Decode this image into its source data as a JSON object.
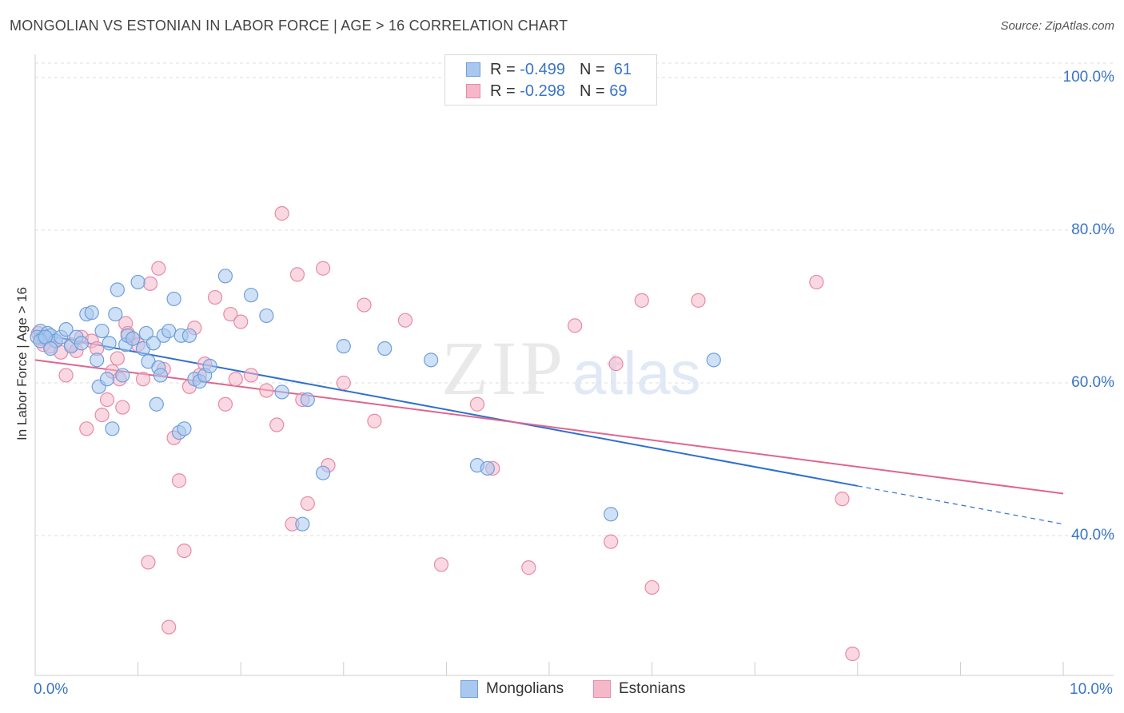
{
  "title": "MONGOLIAN VS ESTONIAN IN LABOR FORCE | AGE > 16 CORRELATION CHART",
  "source": "Source: ZipAtlas.com",
  "watermark": {
    "zip": "ZIP",
    "atlas": "atlas"
  },
  "legend": {
    "rows": [
      {
        "r_label": "R =",
        "r_value": "-0.499",
        "n_label": "N =",
        "n_value": "61"
      },
      {
        "r_label": "R =",
        "r_value": "-0.298",
        "n_label": "N =",
        "n_value": "69"
      }
    ]
  },
  "bottom_legend": {
    "series1": "Mongolians",
    "series2": "Estonians"
  },
  "colors": {
    "mongolians_fill": "#a8c8f0",
    "mongolians_stroke": "#6f9fd8",
    "mongolians_line": "#2e6fd1",
    "estonians_fill": "#f5b8cb",
    "estonians_stroke": "#e68aa8",
    "estonians_line": "#e0658f",
    "tick_text": "#3a75c4",
    "grid": "#dddddd"
  },
  "chart_data": {
    "type": "scatter",
    "title": "MONGOLIAN VS ESTONIAN IN LABOR FORCE | AGE > 16 CORRELATION CHART",
    "xlabel": "",
    "ylabel": "In Labor Force | Age > 16",
    "xlim": [
      0,
      10
    ],
    "ylim": [
      20,
      101
    ],
    "x_tick_labels": [
      "0.0%",
      "10.0%"
    ],
    "y_ticks": [
      40,
      60,
      80,
      100
    ],
    "y_tick_labels": [
      "40.0%",
      "60.0%",
      "80.0%",
      "100.0%"
    ],
    "grid": true,
    "series": [
      {
        "name": "Mongolians",
        "r": -0.499,
        "n": 61,
        "trend": {
          "x0": 0,
          "y0": 66.5,
          "x1": 8,
          "y1": 46.5,
          "dashed_to_x": 10,
          "dashed_to_y": 41.5
        },
        "points": [
          [
            0.05,
            66.8
          ],
          [
            0.08,
            66.0
          ],
          [
            0.12,
            66.5
          ],
          [
            0.15,
            66.2
          ],
          [
            0.2,
            65.5
          ],
          [
            0.25,
            66.0
          ],
          [
            0.3,
            67.0
          ],
          [
            0.35,
            64.8
          ],
          [
            0.4,
            66.0
          ],
          [
            0.45,
            65.2
          ],
          [
            0.5,
            69.0
          ],
          [
            0.55,
            69.2
          ],
          [
            0.6,
            63.0
          ],
          [
            0.62,
            59.5
          ],
          [
            0.65,
            66.8
          ],
          [
            0.7,
            60.5
          ],
          [
            0.72,
            65.2
          ],
          [
            0.75,
            54.0
          ],
          [
            0.78,
            69.0
          ],
          [
            0.8,
            72.2
          ],
          [
            0.85,
            61.0
          ],
          [
            0.88,
            65.0
          ],
          [
            0.9,
            66.2
          ],
          [
            0.95,
            65.8
          ],
          [
            1.0,
            73.2
          ],
          [
            1.05,
            64.5
          ],
          [
            1.08,
            66.5
          ],
          [
            1.1,
            62.8
          ],
          [
            1.15,
            65.2
          ],
          [
            1.18,
            57.2
          ],
          [
            1.2,
            62.0
          ],
          [
            1.22,
            61.0
          ],
          [
            1.25,
            66.2
          ],
          [
            1.3,
            66.8
          ],
          [
            1.35,
            71.0
          ],
          [
            1.4,
            53.5
          ],
          [
            1.42,
            66.2
          ],
          [
            1.45,
            54.0
          ],
          [
            1.5,
            66.2
          ],
          [
            1.55,
            60.5
          ],
          [
            1.6,
            60.2
          ],
          [
            1.65,
            61.0
          ],
          [
            1.7,
            62.2
          ],
          [
            1.85,
            74.0
          ],
          [
            2.1,
            71.5
          ],
          [
            2.25,
            68.8
          ],
          [
            2.4,
            58.8
          ],
          [
            2.65,
            57.8
          ],
          [
            2.6,
            41.5
          ],
          [
            2.8,
            48.2
          ],
          [
            3.0,
            64.8
          ],
          [
            3.4,
            64.5
          ],
          [
            3.85,
            63.0
          ],
          [
            4.3,
            49.2
          ],
          [
            4.4,
            48.8
          ],
          [
            5.6,
            42.8
          ],
          [
            6.6,
            63.0
          ],
          [
            0.02,
            66.0
          ],
          [
            0.05,
            65.5
          ],
          [
            0.1,
            66.0
          ],
          [
            0.15,
            64.5
          ]
        ]
      },
      {
        "name": "Estonians",
        "r": -0.298,
        "n": 69,
        "trend": {
          "x0": 0,
          "y0": 63.0,
          "x1": 10,
          "y1": 45.5
        },
        "points": [
          [
            0.03,
            66.5
          ],
          [
            0.08,
            65.0
          ],
          [
            0.1,
            66.0
          ],
          [
            0.15,
            64.8
          ],
          [
            0.2,
            65.5
          ],
          [
            0.25,
            64.0
          ],
          [
            0.3,
            61.0
          ],
          [
            0.35,
            65.0
          ],
          [
            0.4,
            64.2
          ],
          [
            0.45,
            66.0
          ],
          [
            0.5,
            54.0
          ],
          [
            0.55,
            65.5
          ],
          [
            0.6,
            64.5
          ],
          [
            0.65,
            55.8
          ],
          [
            0.7,
            57.8
          ],
          [
            0.75,
            61.5
          ],
          [
            0.8,
            63.2
          ],
          [
            0.82,
            60.5
          ],
          [
            0.85,
            56.8
          ],
          [
            0.88,
            67.8
          ],
          [
            0.9,
            66.5
          ],
          [
            0.95,
            65.8
          ],
          [
            1.0,
            65.0
          ],
          [
            1.05,
            60.5
          ],
          [
            1.1,
            36.5
          ],
          [
            1.12,
            73.0
          ],
          [
            1.2,
            75.0
          ],
          [
            1.25,
            61.8
          ],
          [
            1.3,
            28.0
          ],
          [
            1.35,
            52.8
          ],
          [
            1.4,
            47.2
          ],
          [
            1.45,
            38.0
          ],
          [
            1.5,
            59.5
          ],
          [
            1.55,
            67.2
          ],
          [
            1.6,
            61.0
          ],
          [
            1.65,
            62.5
          ],
          [
            1.75,
            71.2
          ],
          [
            1.85,
            57.2
          ],
          [
            1.9,
            69.0
          ],
          [
            1.95,
            60.5
          ],
          [
            2.0,
            68.0
          ],
          [
            2.1,
            61.0
          ],
          [
            2.25,
            59.0
          ],
          [
            2.35,
            54.5
          ],
          [
            2.4,
            82.2
          ],
          [
            2.5,
            41.5
          ],
          [
            2.55,
            74.2
          ],
          [
            2.6,
            57.8
          ],
          [
            2.65,
            44.2
          ],
          [
            2.8,
            75.0
          ],
          [
            2.85,
            49.2
          ],
          [
            3.0,
            60.0
          ],
          [
            3.2,
            70.2
          ],
          [
            3.3,
            55.0
          ],
          [
            3.6,
            68.2
          ],
          [
            3.95,
            36.2
          ],
          [
            4.3,
            57.2
          ],
          [
            4.45,
            48.8
          ],
          [
            4.8,
            35.8
          ],
          [
            5.25,
            67.5
          ],
          [
            5.6,
            39.2
          ],
          [
            5.65,
            62.5
          ],
          [
            5.9,
            70.8
          ],
          [
            6.0,
            33.2
          ],
          [
            6.45,
            70.8
          ],
          [
            7.6,
            73.2
          ],
          [
            7.85,
            44.8
          ],
          [
            7.95,
            24.5
          ],
          [
            0.06,
            65.8
          ]
        ]
      }
    ]
  }
}
